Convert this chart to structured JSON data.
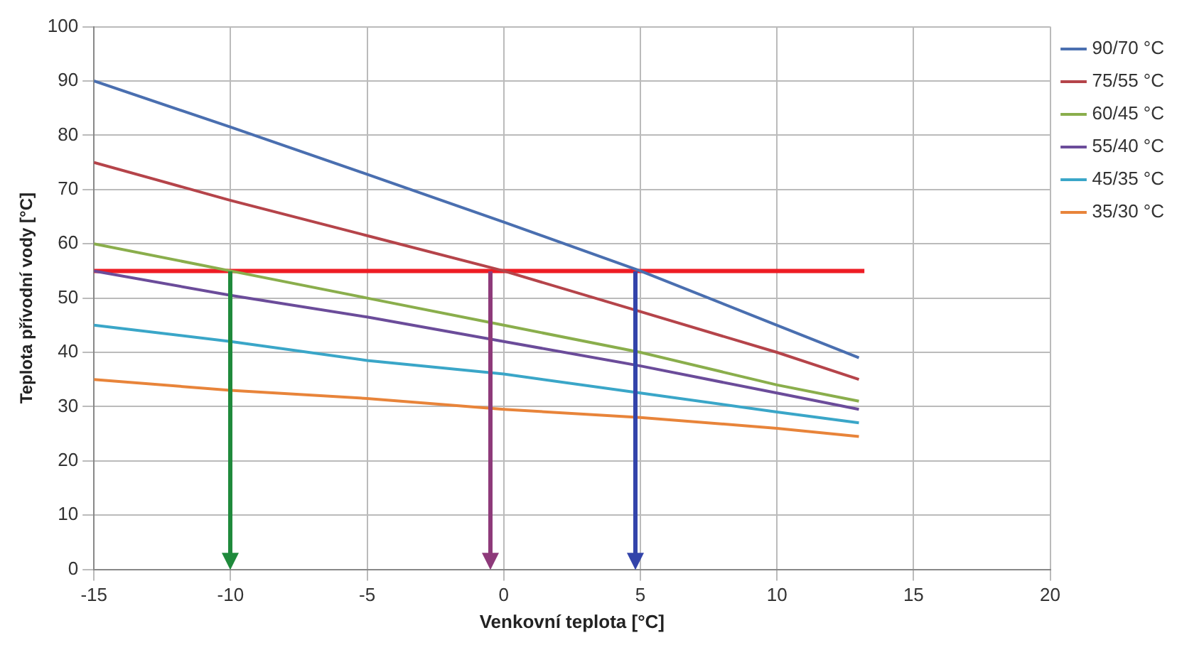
{
  "chart_data": {
    "type": "line",
    "xlabel": "Venkovní teplota [°C]",
    "ylabel": "Teplota přívodní vody [°C]",
    "x": [
      -15,
      -10,
      -5,
      0,
      5,
      10,
      13
    ],
    "series": [
      {
        "name": "90/70 °C",
        "color": "#4a6fb0",
        "values": [
          90,
          81.5,
          72.8,
          64,
          55,
          45,
          39
        ]
      },
      {
        "name": "75/55 °C",
        "color": "#b5444a",
        "values": [
          75,
          68,
          61.5,
          55,
          47.5,
          40,
          35
        ]
      },
      {
        "name": "60/45 °C",
        "color": "#8aae4c",
        "values": [
          60,
          55,
          50,
          45,
          40,
          34,
          31
        ]
      },
      {
        "name": "55/40 °C",
        "color": "#6b4c9a",
        "values": [
          55,
          50.5,
          46.5,
          42,
          37.5,
          32.5,
          29.5
        ]
      },
      {
        "name": "45/35 °C",
        "color": "#3aa6c8",
        "values": [
          45,
          42,
          38.5,
          36,
          32.5,
          29,
          27
        ]
      },
      {
        "name": "35/30 °C",
        "color": "#e8843a",
        "values": [
          35,
          33,
          31.5,
          29.5,
          28,
          26,
          24.5
        ]
      },
      {
        "color": "#ee1c24",
        "x": [
          -15,
          13.2
        ],
        "values": [
          55,
          55
        ]
      }
    ],
    "xlim": [
      -15,
      20
    ],
    "xticks": [
      -15,
      -10,
      -5,
      0,
      5,
      10,
      15,
      20
    ],
    "ylim": [
      0,
      100
    ],
    "yticks": [
      0,
      10,
      20,
      30,
      40,
      50,
      60,
      70,
      80,
      90,
      100
    ],
    "grid": true,
    "legend": "top right"
  }
}
